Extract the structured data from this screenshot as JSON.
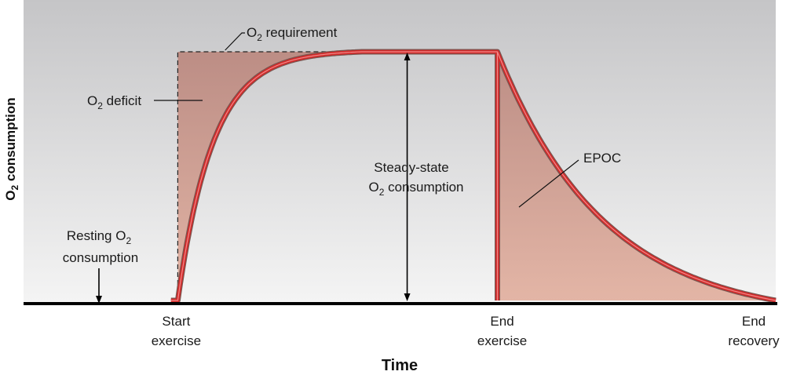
{
  "chart_data": {
    "type": "area",
    "title": "",
    "xlabel": "Time",
    "ylabel_main": "O",
    "ylabel_sub": "2",
    "ylabel_rest": " consumption",
    "x_ticks": [
      {
        "line1": "Start",
        "line2": "exercise"
      },
      {
        "line1": "End",
        "line2": "exercise"
      },
      {
        "line1": "End",
        "line2": "recovery"
      }
    ],
    "annotations": {
      "requirement": {
        "main": "O",
        "sub": "2",
        "rest": " requirement"
      },
      "deficit": {
        "main": "O",
        "sub": "2",
        "rest": " deficit"
      },
      "steady_line1": "Steady-state",
      "steady_line2": {
        "main": "O",
        "sub": "2",
        "rest": " consumption"
      },
      "resting_line1": {
        "main": "Resting O",
        "sub": "2"
      },
      "resting_line2": "consumption",
      "epoc": "EPOC"
    },
    "phases": {
      "start_exercise": 0.205,
      "steady_reached": 0.45,
      "end_exercise": 0.63,
      "end_recovery": 1.0
    },
    "levels": {
      "resting": 0,
      "steady_state": 1
    },
    "colors": {
      "curve": "#d42a2a",
      "fill": "#c9968a",
      "background_top": "#c5c5c7",
      "background_bottom": "#f4f4f4",
      "axis": "#000000"
    }
  }
}
